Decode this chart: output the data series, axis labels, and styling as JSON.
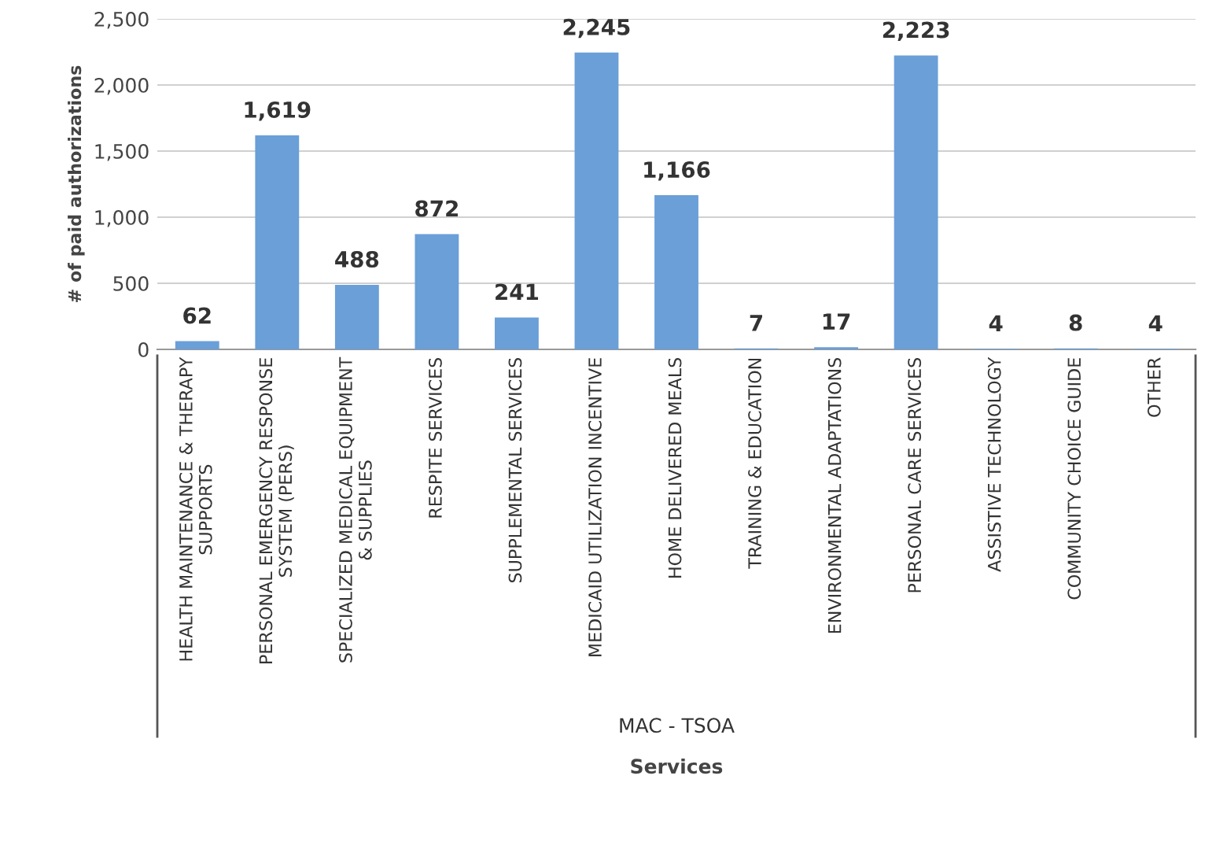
{
  "chart_data": {
    "type": "bar",
    "categories": [
      "HEALTH MAINTENANCE & THERAPY\nSUPPORTS",
      "PERSONAL EMERGENCY RESPONSE\nSYSTEM (PERS)",
      "SPECIALIZED MEDICAL EQUIPMENT\n& SUPPLIES",
      "RESPITE SERVICES",
      "SUPPLEMENTAL SERVICES",
      "MEDICAID UTILIZATION INCENTIVE",
      "HOME DELIVERED MEALS",
      "TRAINING & EDUCATION",
      "ENVIRONMENTAL ADAPTATIONS",
      "PERSONAL CARE SERVICES",
      "ASSISTIVE TECHNOLOGY",
      "COMMUNITY CHOICE GUIDE",
      "OTHER"
    ],
    "values": [
      62,
      1619,
      488,
      872,
      241,
      2245,
      1166,
      7,
      17,
      2223,
      4,
      8,
      4
    ],
    "color": "#6a9fd8",
    "ylim": [
      0,
      2500
    ],
    "yticks": [
      {
        "value": 0,
        "label": "0"
      },
      {
        "value": 500,
        "label": "500"
      },
      {
        "value": 1000,
        "label": "1,000"
      },
      {
        "value": 1500,
        "label": "1,500"
      },
      {
        "value": 2000,
        "label": "2,000"
      },
      {
        "value": 2500,
        "label": "2,500"
      }
    ],
    "grid": "y",
    "value_labels": [
      "62",
      "1,619",
      "488",
      "872",
      "241",
      "2,245",
      "1,166",
      "7",
      "17",
      "2,223",
      "4",
      "8",
      "4"
    ],
    "ylabel": "# of paid authorizations",
    "xlabel": "Services",
    "annotations": [
      "MAC - TSOA"
    ]
  }
}
